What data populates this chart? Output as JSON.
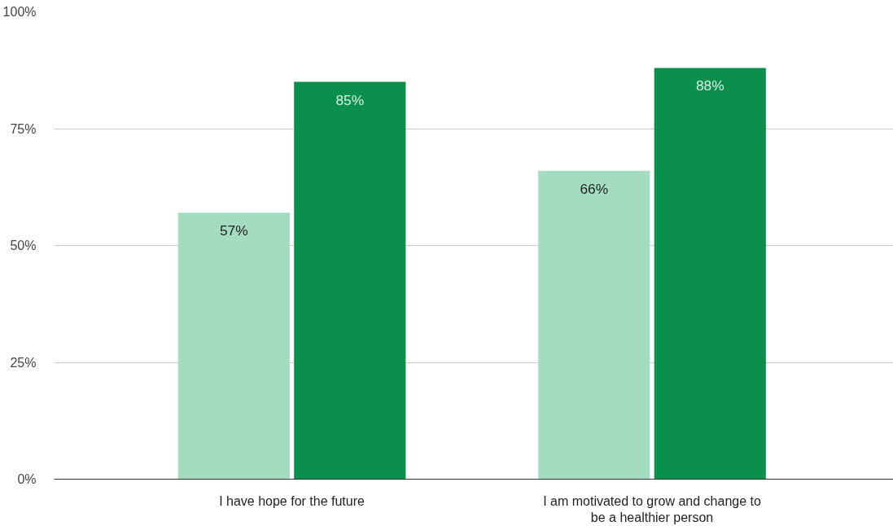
{
  "chart_data": {
    "type": "bar",
    "categories": [
      "I have hope for the future",
      "I am motivated to grow and change to be a healthier person"
    ],
    "series": [
      {
        "color": "#a3dcc1",
        "values": [
          57,
          66
        ]
      },
      {
        "color": "#0b8f4d",
        "values": [
          85,
          88
        ]
      }
    ],
    "ylim": [
      0,
      100
    ],
    "yticks": [
      {
        "value": 0,
        "label": "0%"
      },
      {
        "value": 25,
        "label": "25%"
      },
      {
        "value": 50,
        "label": "50%"
      },
      {
        "value": 75,
        "label": "75%"
      },
      {
        "value": 100,
        "label": "100%"
      }
    ],
    "grid": "y",
    "value_labels": [
      [
        "57%",
        "66%"
      ],
      [
        "85%",
        "88%"
      ]
    ]
  }
}
